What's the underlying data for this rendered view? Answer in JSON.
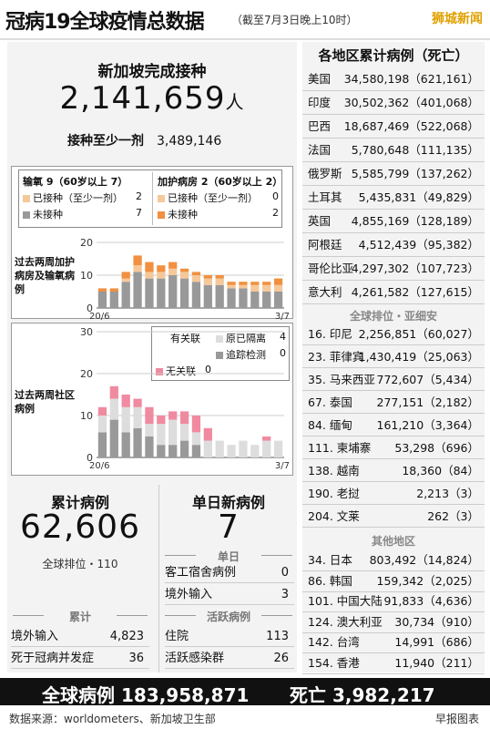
{
  "header": {
    "title": "冠病19全球疫情总数据",
    "subtitle": "（截至7月3日晚上10时）",
    "brand": "狮城新闻"
  },
  "vaccination": {
    "title": "新加坡完成接种",
    "total": "2,141,659",
    "unit": "人",
    "one_dose_label": "接种至少一剂",
    "one_dose_value": "3,489,146"
  },
  "hospital_legend": {
    "oxygen_title": "输氧 9（60岁以上 7）",
    "icu_title": "加护病房 2（60岁以上 2）",
    "vaccinated_label": "已接种（至少一剂）",
    "unvaccinated_label": "未接种",
    "oxygen_vaccinated": "2",
    "oxygen_unvaccinated": "7",
    "icu_vaccinated": "0",
    "icu_unvaccinated": "2"
  },
  "community_legend": {
    "linked_label": "有关联",
    "quarantined_label": "原已隔离",
    "quarantined_value": "4",
    "surveillance_label": "追踪检测",
    "surveillance_value": "0",
    "unlinked_label": "无关联",
    "unlinked_value": "0"
  },
  "chart_data": [
    {
      "type": "bar",
      "title": "过去两周加护病房及输氧病例",
      "x_start": "20/6",
      "x_end": "3/7",
      "ylim": [
        0,
        20
      ],
      "yticks": [
        "0",
        "10",
        "20"
      ],
      "series": [
        {
          "name": "未接种",
          "color": "#999999",
          "values": [
            5,
            5,
            8,
            11,
            9,
            9,
            10,
            9,
            8,
            7,
            7,
            6,
            6,
            5,
            5,
            5
          ]
        },
        {
          "name": "已接种（至少一剂）",
          "color": "#f5c89a",
          "values": [
            0,
            0,
            1,
            2,
            2,
            2,
            2,
            2,
            2,
            2,
            2,
            1,
            1,
            2,
            2,
            2
          ]
        },
        {
          "name": "加护病房",
          "color": "#f09040",
          "values": [
            1,
            1,
            2,
            3,
            3,
            2,
            2,
            1,
            1,
            1,
            1,
            1,
            1,
            1,
            1,
            2
          ]
        }
      ]
    },
    {
      "type": "bar",
      "title": "过去两周社区病例",
      "x_start": "20/6",
      "x_end": "3/7",
      "ylim": [
        0,
        30
      ],
      "yticks": [
        "0",
        "10",
        "20",
        "30"
      ],
      "series": [
        {
          "name": "追踪检测",
          "color": "#999999",
          "values": [
            6,
            9,
            6,
            7,
            5,
            3,
            3,
            4,
            3,
            0,
            0,
            0,
            0,
            0,
            0,
            0
          ]
        },
        {
          "name": "原已隔离",
          "color": "#dddddd",
          "values": [
            4,
            5,
            6,
            5,
            3,
            5,
            6,
            4,
            3,
            4,
            4,
            3,
            4,
            3,
            4,
            4
          ]
        },
        {
          "name": "无关联",
          "color": "#f08aa0",
          "values": [
            2,
            3,
            3,
            2,
            4,
            2,
            2,
            3,
            4,
            3,
            0,
            0,
            0,
            0,
            1,
            0
          ]
        }
      ]
    }
  ],
  "cumulative": {
    "title": "累计病例",
    "total": "62,606",
    "rank": "全球排位・110",
    "section_label": "累计",
    "imported_label": "境外输入",
    "imported_value": "4,823",
    "deaths_label": "死于冠病并发症",
    "deaths_value": "36"
  },
  "daily": {
    "title": "单日新病例",
    "total": "7",
    "section_single": "单日",
    "dorm_label": "客工宿舍病例",
    "dorm_value": "0",
    "imported_label": "境外输入",
    "imported_value": "3",
    "section_active": "活跃病例",
    "hospital_label": "住院",
    "hospital_value": "113",
    "clusters_label": "活跃感染群",
    "clusters_value": "26"
  },
  "countries": {
    "title": "各地区累计病例（死亡）",
    "rows": [
      {
        "name": "美国",
        "cases": "34,580,198（621,161）"
      },
      {
        "name": "印度",
        "cases": "30,502,362（401,068）"
      },
      {
        "name": "巴西",
        "cases": "18,687,469（522,068）"
      },
      {
        "name": "法国",
        "cases": "5,780,648（111,135）"
      },
      {
        "name": "俄罗斯",
        "cases": "5,585,799（137,262）"
      },
      {
        "name": "土耳其",
        "cases": "5,435,831（49,829）"
      },
      {
        "name": "英国",
        "cases": "4,855,169（128,189）"
      },
      {
        "name": "阿根廷",
        "cases": "4,512,439（95,382）"
      },
      {
        "name": "哥伦比亚",
        "cases": "4,297,302（107,723）"
      },
      {
        "name": "意大利",
        "cases": "4,261,582（127,615）"
      }
    ],
    "asean_title": "全球排位・亚细安",
    "asean": [
      {
        "name": "16. 印尼",
        "cases": "2,256,851（60,027）"
      },
      {
        "name": "23. 菲律宾",
        "cases": "1,430,419（25,063）"
      },
      {
        "name": "35. 马来西亚",
        "cases": "772,607（5,434）"
      },
      {
        "name": "67. 泰国",
        "cases": "277,151（2,182）"
      },
      {
        "name": "84. 缅甸",
        "cases": "161,210（3,364）"
      },
      {
        "name": "111. 柬埔寨",
        "cases": "53,298（696）"
      },
      {
        "name": "138. 越南",
        "cases": "18,360（84）"
      },
      {
        "name": "190. 老挝",
        "cases": "2,213（3）"
      },
      {
        "name": "204. 文莱",
        "cases": "262（3）"
      }
    ],
    "other_title": "其他地区",
    "other": [
      {
        "name": "34. 日本",
        "cases": "803,492（14,824）"
      },
      {
        "name": "86. 韩国",
        "cases": "159,342（2,025）"
      },
      {
        "name": "101. 中国大陆",
        "cases": "91,833（4,636）"
      },
      {
        "name": "124. 澳大利亚",
        "cases": "30,734（910）"
      },
      {
        "name": "142. 台湾",
        "cases": "14,991（686）"
      },
      {
        "name": "154. 香港",
        "cases": "11,940（211）"
      }
    ]
  },
  "footer": {
    "global_cases": "全球病例 183,958,871",
    "global_deaths": "死亡 3,982,217",
    "source": "数据来源：worldometers、新加坡卫生部",
    "credit": "早报图表"
  }
}
